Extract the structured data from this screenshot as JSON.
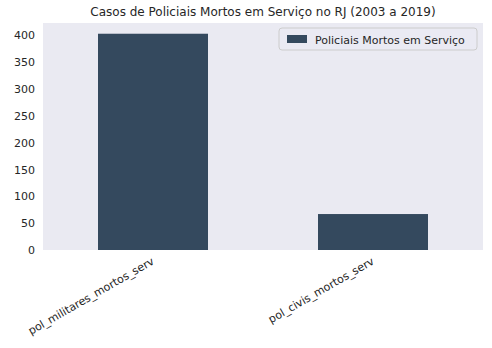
{
  "chart_data": {
    "type": "bar",
    "title": "Casos de Policiais Mortos em Serviço no RJ (2003 a 2019)",
    "categories": [
      "pol_militares_mortos_serv",
      "pol_civis_mortos_serv"
    ],
    "series": [
      {
        "name": "Policiais Mortos em Serviço",
        "color": "#34495e",
        "values": [
          403,
          67
        ]
      }
    ],
    "ylim": [
      0,
      423
    ],
    "yticks": [
      0,
      50,
      100,
      150,
      200,
      250,
      300,
      350,
      400
    ],
    "grid": false,
    "legend": "upper right"
  }
}
